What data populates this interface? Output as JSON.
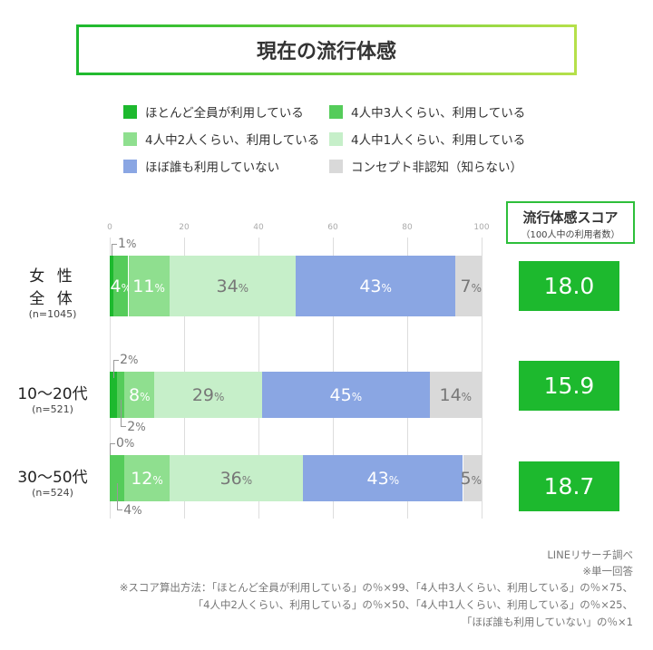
{
  "chart_data": {
    "type": "bar",
    "orientation": "horizontal-stacked",
    "title": "現在の流行体感",
    "xlim": [
      0,
      100
    ],
    "xticks": [
      0,
      20,
      40,
      60,
      80,
      100
    ],
    "grid": true,
    "legend_placement": "top",
    "categories": [
      {
        "label": "女 性\n全 体",
        "lines": [
          "女 性",
          "全 体"
        ],
        "n": "(n=1045)"
      },
      {
        "label": "10〜20代",
        "lines": [
          "10〜20代"
        ],
        "n": "(n=521)"
      },
      {
        "label": "30〜50代",
        "lines": [
          "30〜50代"
        ],
        "n": "(n=524)"
      }
    ],
    "series": [
      {
        "name": "ほとんど全員が利用している",
        "color": "#1db92e",
        "values": [
          1,
          2,
          0
        ]
      },
      {
        "name": "4人中3人くらい、利用している",
        "color": "#55cc5a",
        "values": [
          4,
          2,
          4
        ]
      },
      {
        "name": "4人中2人くらい、利用している",
        "color": "#8fdf8f",
        "values": [
          11,
          8,
          12
        ]
      },
      {
        "name": "4人中1人くらい、利用している",
        "color": "#c6efc9",
        "values": [
          34,
          29,
          36
        ]
      },
      {
        "name": "ほぼ誰も利用していない",
        "color": "#8aa6e3",
        "values": [
          43,
          45,
          43
        ]
      },
      {
        "name": "コンセプト非認知（知らない）",
        "color": "#d9d9d9",
        "values": [
          7,
          14,
          5
        ]
      }
    ],
    "unit": "%",
    "score": {
      "title": "流行体感スコア",
      "subtitle": "（100人中の利用者数）",
      "values": [
        "18.0",
        "15.9",
        "18.7"
      ]
    }
  },
  "footnotes": [
    "LINEリサーチ調べ",
    "※単一回答",
    "※スコア算出方法：「ほとんど全員が利用している」の％×99、「4人中3人くらい、利用している」の％×75、",
    "「4人中2人くらい、利用している」の％×50、「4人中1人くらい、利用している」の％×25、",
    "「ほぼ誰も利用していない」の％×1"
  ]
}
